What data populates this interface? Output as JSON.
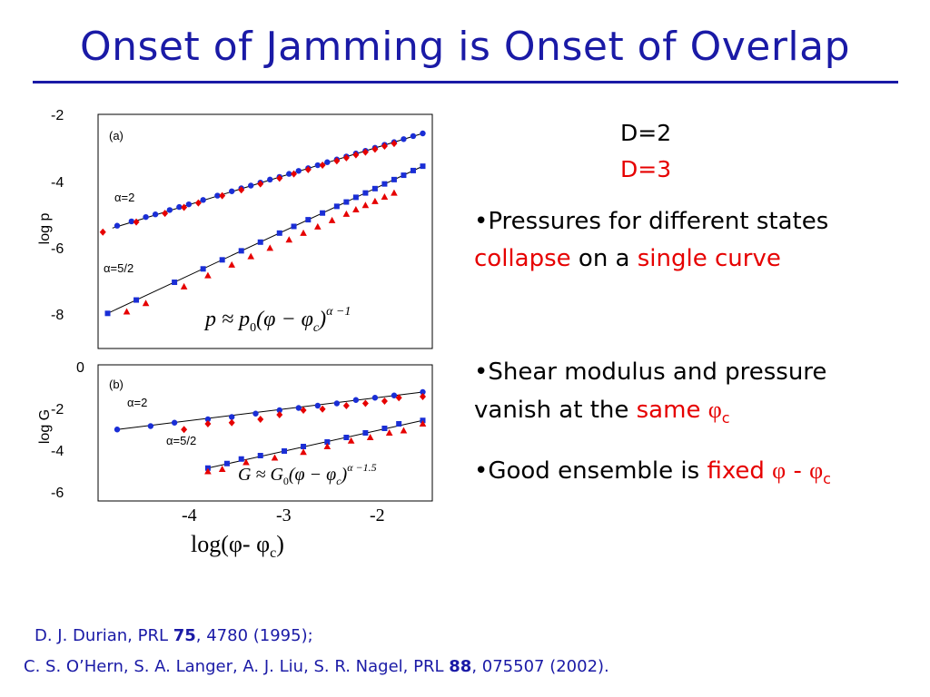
{
  "title": "Onset of Jamming is Onset of Overlap",
  "legend": {
    "d2": "D=2",
    "d3": "D=3",
    "d2_color": "#1a1aa6",
    "d3_color": "#e60000"
  },
  "bullets": {
    "b1": {
      "pre": "•Pressures for different states ",
      "red1": "collapse",
      "mid": " on a ",
      "red2": "single curve"
    },
    "b2": {
      "pre": "•Shear modulus and pressure vanish at the ",
      "red": "same",
      "phi": "φ",
      "sub": "c"
    },
    "b3": {
      "pre": "•Good ensemble is ",
      "red": "fixed",
      "phi": "φ",
      "dash": " - ",
      "phi2": "φ",
      "sub": "c"
    }
  },
  "references": {
    "ref1_pre": "D. J. Durian, PRL ",
    "ref1_vol": "75",
    "ref1_post": ", 4780 (1995);",
    "ref2_pre": "C. S. O’Hern, S. A. Langer, A. J. Liu, S. R. Nagel, PRL ",
    "ref2_vol": "88",
    "ref2_post": ", 075507 (2002)."
  },
  "chart_data": [
    {
      "type": "scatter",
      "panel_label": "(a)",
      "ylabel": "log p",
      "y_ticks": [
        "-2",
        "-4",
        "-6",
        "-8"
      ],
      "ylim": [
        -9,
        -2
      ],
      "xlim": [
        -5.0,
        -1.5
      ],
      "formula": {
        "lhs": "p",
        "approx": " ≈ ",
        "p0": "p",
        "p0_sub": "0",
        "body": "(φ − φ",
        "body_sub": "c",
        "close": ")",
        "exp": "α −1"
      },
      "annotations": [
        "α=2",
        "α=5/2"
      ],
      "series": [
        {
          "name": "D=2",
          "group": "α=2",
          "color": "#1a2ed6",
          "x": [
            -4.8,
            -4.65,
            -4.5,
            -4.4,
            -4.25,
            -4.15,
            -4.05,
            -3.9,
            -3.75,
            -3.6,
            -3.5,
            -3.4,
            -3.3,
            -3.2,
            -3.1,
            -3.0,
            -2.9,
            -2.8,
            -2.7,
            -2.6,
            -2.5,
            -2.4,
            -2.3,
            -2.2,
            -2.1,
            -2.0,
            -1.9,
            -1.8,
            -1.7,
            -1.6
          ],
          "y": [
            -5.33,
            -5.2,
            -5.07,
            -4.99,
            -4.86,
            -4.77,
            -4.69,
            -4.56,
            -4.43,
            -4.3,
            -4.21,
            -4.13,
            -4.04,
            -3.95,
            -3.87,
            -3.78,
            -3.69,
            -3.61,
            -3.52,
            -3.43,
            -3.35,
            -3.26,
            -3.17,
            -3.09,
            -3.0,
            -2.91,
            -2.83,
            -2.74,
            -2.65,
            -2.57
          ]
        },
        {
          "name": "D=3",
          "group": "α=2",
          "color": "#e60000",
          "x": [
            -4.95,
            -4.6,
            -4.3,
            -4.1,
            -3.95,
            -3.7,
            -3.5,
            -3.3,
            -3.1,
            -2.95,
            -2.8,
            -2.65,
            -2.5,
            -2.4,
            -2.3,
            -2.2,
            -2.1,
            -2.0,
            -1.9
          ],
          "y": [
            -5.52,
            -5.22,
            -4.96,
            -4.78,
            -4.65,
            -4.43,
            -4.26,
            -4.08,
            -3.91,
            -3.78,
            -3.65,
            -3.52,
            -3.39,
            -3.3,
            -3.21,
            -3.13,
            -3.04,
            -2.95,
            -2.87
          ]
        },
        {
          "name": "D=2",
          "group": "α=5/2",
          "color": "#1a2ed6",
          "x": [
            -4.9,
            -4.6,
            -4.2,
            -3.9,
            -3.7,
            -3.5,
            -3.3,
            -3.1,
            -2.95,
            -2.8,
            -2.65,
            -2.5,
            -2.4,
            -2.3,
            -2.2,
            -2.1,
            -2.0,
            -1.9,
            -1.8,
            -1.7,
            -1.6
          ],
          "y": [
            -7.95,
            -7.55,
            -7.02,
            -6.62,
            -6.35,
            -6.08,
            -5.82,
            -5.55,
            -5.35,
            -5.15,
            -4.95,
            -4.75,
            -4.62,
            -4.48,
            -4.35,
            -4.22,
            -4.08,
            -3.95,
            -3.82,
            -3.68,
            -3.55
          ]
        },
        {
          "name": "D=3",
          "group": "α=5/2",
          "color": "#e60000",
          "x": [
            -4.7,
            -4.5,
            -4.1,
            -3.85,
            -3.6,
            -3.4,
            -3.2,
            -3.0,
            -2.85,
            -2.7,
            -2.55,
            -2.4,
            -2.3,
            -2.2,
            -2.1,
            -2.0,
            -1.9
          ],
          "y": [
            -7.9,
            -7.65,
            -7.15,
            -6.82,
            -6.5,
            -6.25,
            -6.0,
            -5.75,
            -5.55,
            -5.36,
            -5.17,
            -4.98,
            -4.85,
            -4.72,
            -4.6,
            -4.47,
            -4.35
          ]
        }
      ],
      "fit_lines": [
        {
          "x": [
            -4.85,
            -1.6
          ],
          "y": [
            -5.4,
            -2.57
          ]
        },
        {
          "x": [
            -4.9,
            -1.6
          ],
          "y": [
            -7.95,
            -3.55
          ]
        }
      ]
    },
    {
      "type": "scatter",
      "panel_label": "(b)",
      "ylabel": "log G",
      "y_ticks": [
        "0",
        "-2",
        "-4",
        "-6"
      ],
      "ylim": [
        -6,
        0
      ],
      "xlim": [
        -5.0,
        -1.5
      ],
      "x_ticks": [
        "-4",
        "-3",
        "-2"
      ],
      "xlabel": {
        "pre": "log(",
        "phi": "φ",
        "mid": "- φ",
        "sub": "c",
        "post": ")"
      },
      "formula": {
        "lhs": "G",
        "approx": " ≈ ",
        "g0": "G",
        "g0_sub": "0",
        "body": "(φ − φ",
        "body_sub": "c",
        "close": ")",
        "exp": "α −1.5"
      },
      "annotations": [
        "α=2",
        "α=5/2"
      ],
      "series": [
        {
          "name": "D=2",
          "group": "α=2",
          "color": "#1a2ed6",
          "x": [
            -4.8,
            -4.45,
            -4.2,
            -3.85,
            -3.6,
            -3.35,
            -3.1,
            -2.9,
            -2.7,
            -2.5,
            -2.3,
            -2.1,
            -1.9,
            -1.6
          ],
          "y": [
            -2.85,
            -2.7,
            -2.55,
            -2.4,
            -2.3,
            -2.15,
            -2.0,
            -1.9,
            -1.8,
            -1.7,
            -1.55,
            -1.45,
            -1.35,
            -1.2
          ]
        },
        {
          "name": "D=3",
          "group": "α=2",
          "color": "#e60000",
          "x": [
            -4.1,
            -3.85,
            -3.6,
            -3.3,
            -3.1,
            -2.85,
            -2.65,
            -2.4,
            -2.2,
            -2.0,
            -1.85,
            -1.6
          ],
          "y": [
            -2.85,
            -2.6,
            -2.55,
            -2.4,
            -2.2,
            -2.0,
            -1.95,
            -1.8,
            -1.7,
            -1.6,
            -1.45,
            -1.4
          ]
        },
        {
          "name": "D=2",
          "group": "α=5/2",
          "color": "#1a2ed6",
          "x": [
            -3.85,
            -3.65,
            -3.5,
            -3.3,
            -3.05,
            -2.85,
            -2.6,
            -2.4,
            -2.2,
            -2.0,
            -1.85,
            -1.6
          ],
          "y": [
            -4.55,
            -4.35,
            -4.15,
            -4.0,
            -3.8,
            -3.6,
            -3.4,
            -3.2,
            -3.0,
            -2.8,
            -2.6,
            -2.45
          ]
        },
        {
          "name": "D=3",
          "group": "α=5/2",
          "color": "#e60000",
          "x": [
            -3.85,
            -3.7,
            -3.45,
            -3.15,
            -2.85,
            -2.6,
            -2.35,
            -2.15,
            -1.95,
            -1.8,
            -1.6
          ],
          "y": [
            -4.7,
            -4.6,
            -4.3,
            -4.1,
            -3.85,
            -3.6,
            -3.35,
            -3.2,
            -3.0,
            -2.9,
            -2.6
          ]
        }
      ],
      "fit_lines": [
        {
          "x": [
            -4.8,
            -1.6
          ],
          "y": [
            -2.85,
            -1.2
          ]
        },
        {
          "x": [
            -3.85,
            -1.6
          ],
          "y": [
            -4.55,
            -2.45
          ]
        }
      ]
    }
  ]
}
